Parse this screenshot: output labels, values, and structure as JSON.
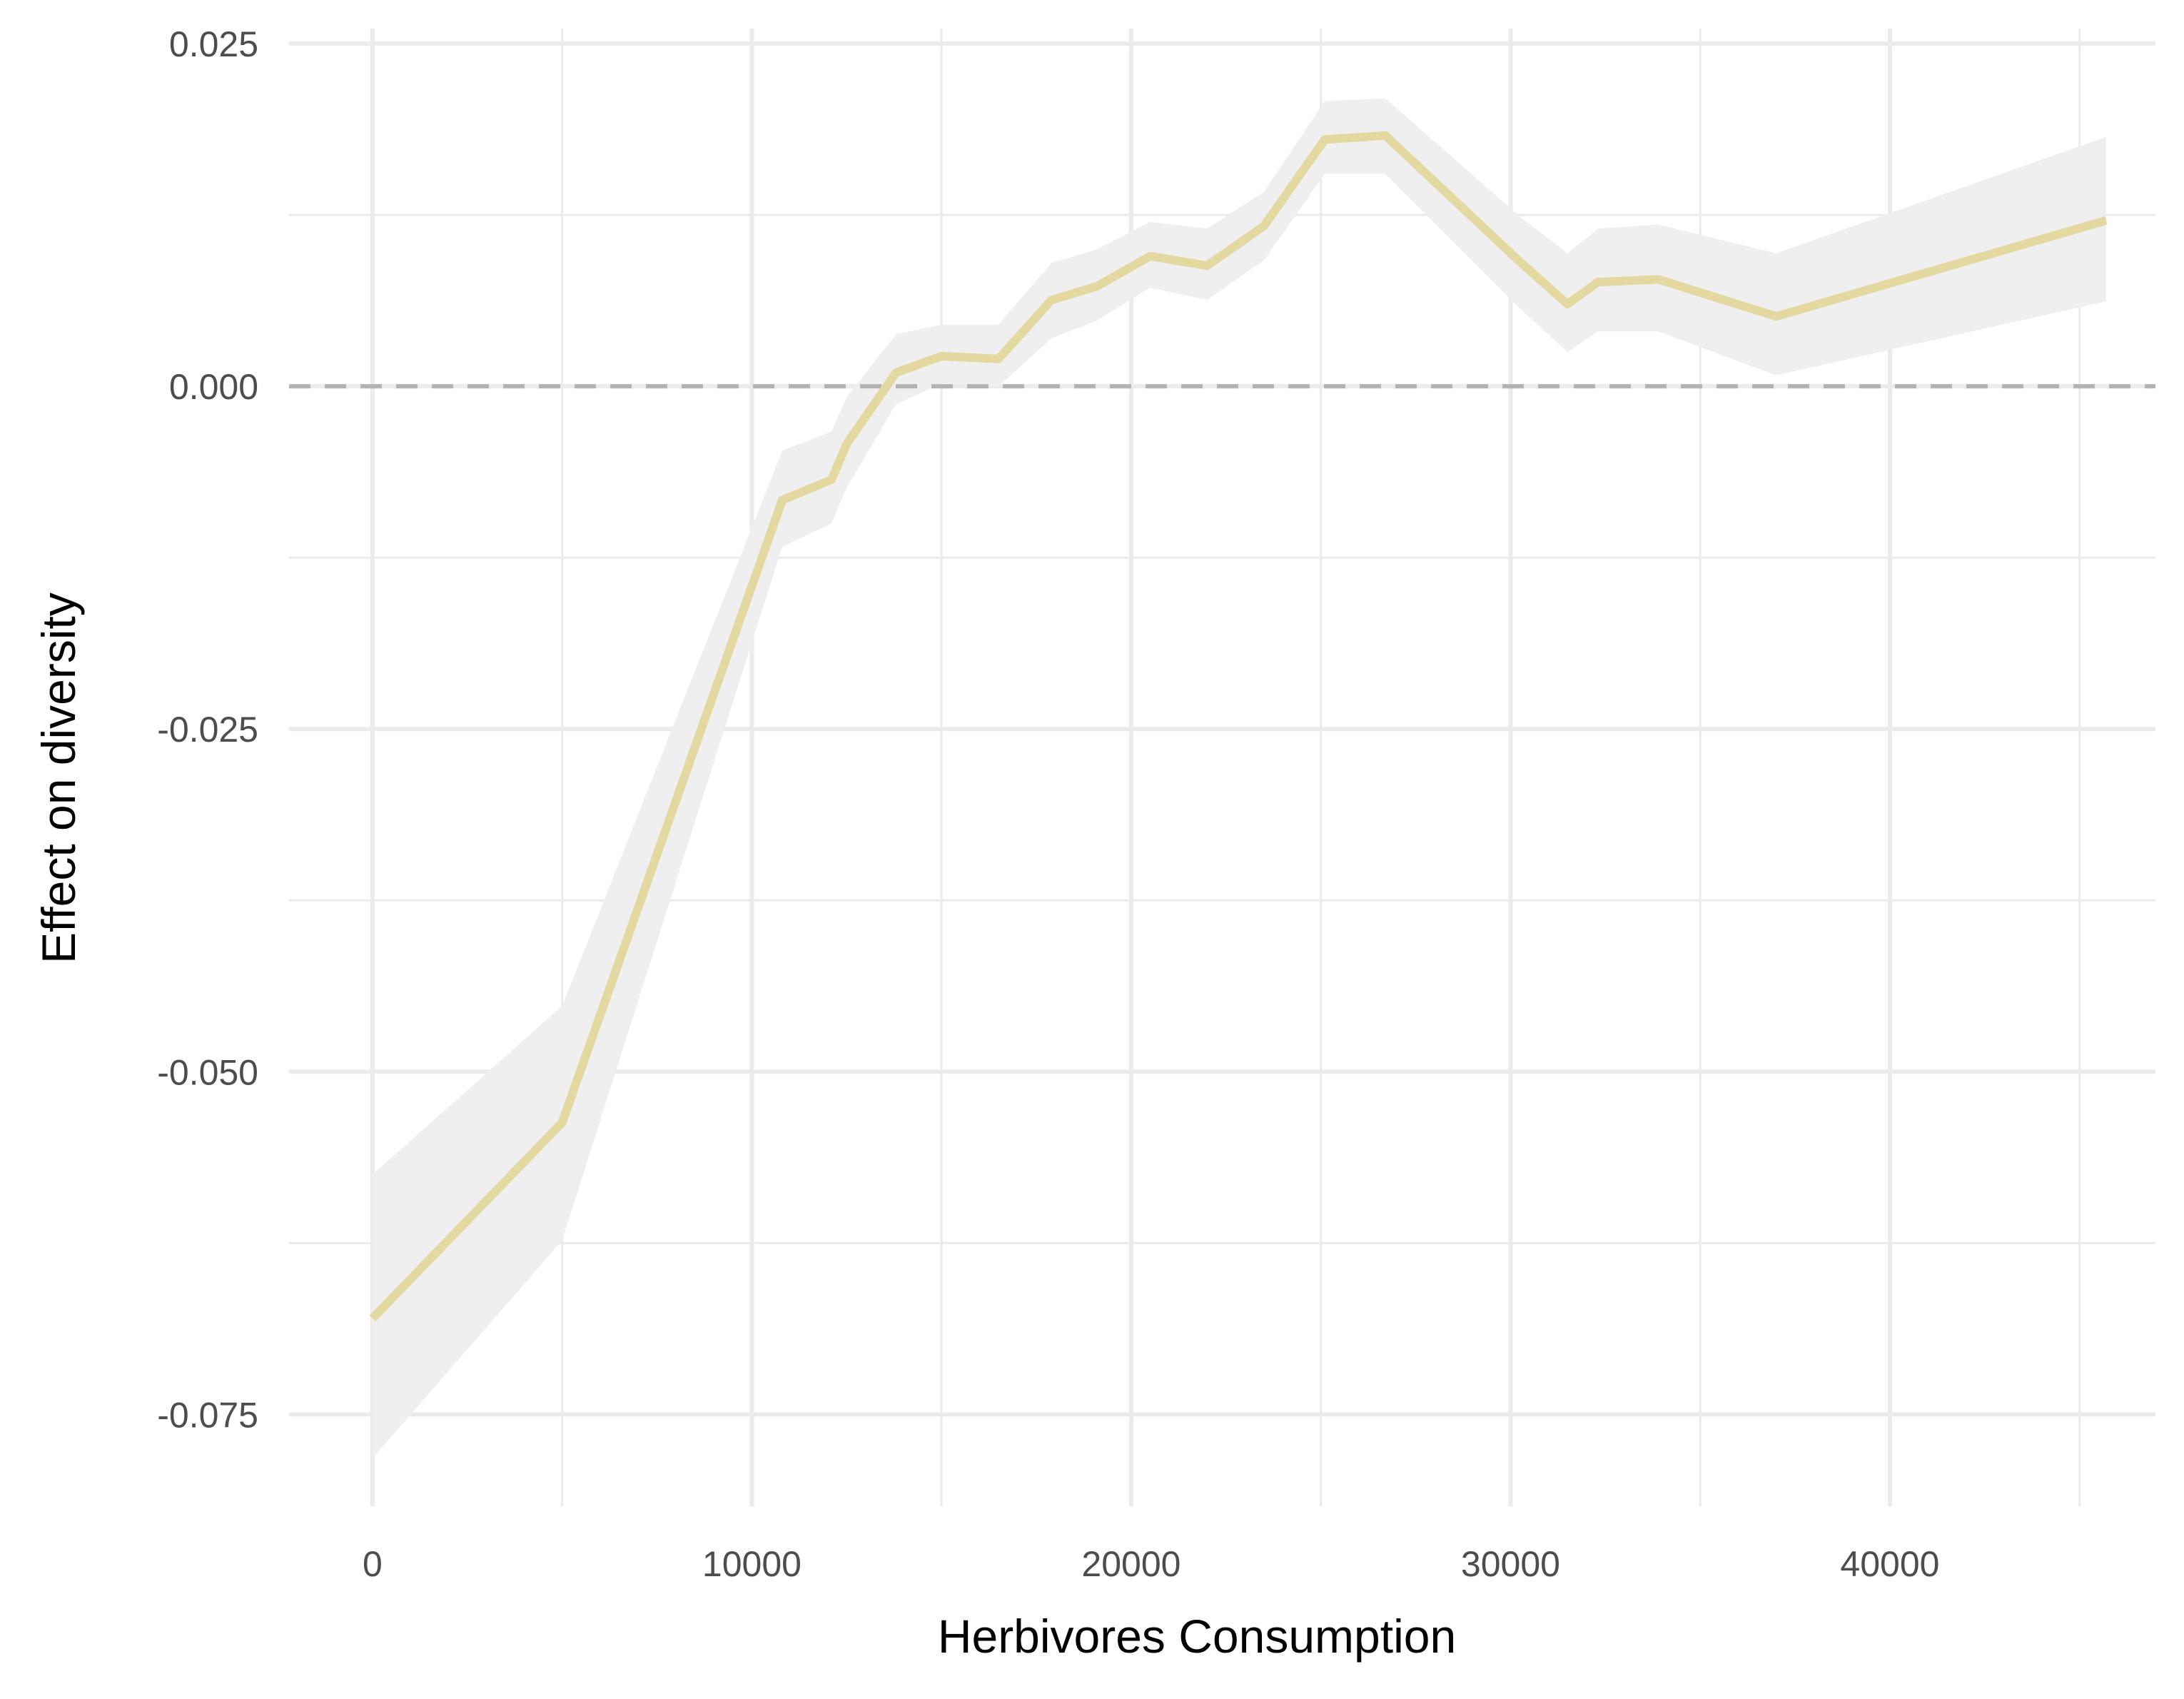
{
  "chart_data": {
    "type": "line",
    "title": "",
    "xlabel": "Herbivores Consumption",
    "ylabel": "Effect on diversity",
    "xlim": [
      -2200,
      47000
    ],
    "ylim": [
      -0.0817,
      0.0261
    ],
    "x_ticks": [
      0,
      10000,
      20000,
      30000,
      40000
    ],
    "x_tick_labels": [
      "0",
      "10000",
      "20000",
      "30000",
      "40000"
    ],
    "x_minor_ticks": [
      5000,
      15000,
      25000,
      35000,
      45000
    ],
    "y_ticks": [
      0.025,
      0.0,
      -0.025,
      -0.05,
      -0.075
    ],
    "y_tick_labels": [
      "0.025",
      "0.000",
      "-0.025",
      "-0.050",
      "-0.075"
    ],
    "y_minor_ticks": [
      0.0125,
      -0.0125,
      -0.0375,
      -0.0625
    ],
    "grid": true,
    "legend": "none",
    "reference_line": {
      "y": 0.0,
      "style": "dashed",
      "color": "#b3b3b3"
    },
    "line_color": "#e3d89f",
    "ribbon_color": "#efefef",
    "grid_color": "#ebebeb",
    "series": [
      {
        "x": [
          0,
          5000,
          10800,
          12100,
          12500,
          13800,
          15000,
          16500,
          17900,
          19100,
          20500,
          22000,
          23500,
          25100,
          26700,
          30200,
          31500,
          32300,
          33900,
          37000,
          45700
        ],
        "y": [
          -0.068,
          -0.0537,
          -0.0083,
          -0.0068,
          -0.0042,
          0.001,
          0.0022,
          0.002,
          0.0063,
          0.0073,
          0.0095,
          0.0088,
          0.0117,
          0.018,
          0.0183,
          0.0092,
          0.006,
          0.0076,
          0.0078,
          0.0051,
          0.0121
        ],
        "lower": [
          -0.0782,
          -0.0623,
          -0.0117,
          -0.01,
          -0.0074,
          -0.0013,
          0.0002,
          0.0,
          0.0035,
          0.0048,
          0.0072,
          0.0063,
          0.0092,
          0.0155,
          0.0155,
          0.0058,
          0.0025,
          0.004,
          0.004,
          0.0008,
          0.0062
        ],
        "upper": [
          -0.0575,
          -0.0452,
          -0.0047,
          -0.0033,
          -0.0008,
          0.0038,
          0.0045,
          0.0045,
          0.009,
          0.01,
          0.012,
          0.0115,
          0.0142,
          0.0208,
          0.021,
          0.0125,
          0.0097,
          0.0115,
          0.0118,
          0.0097,
          0.0182
        ]
      }
    ]
  }
}
